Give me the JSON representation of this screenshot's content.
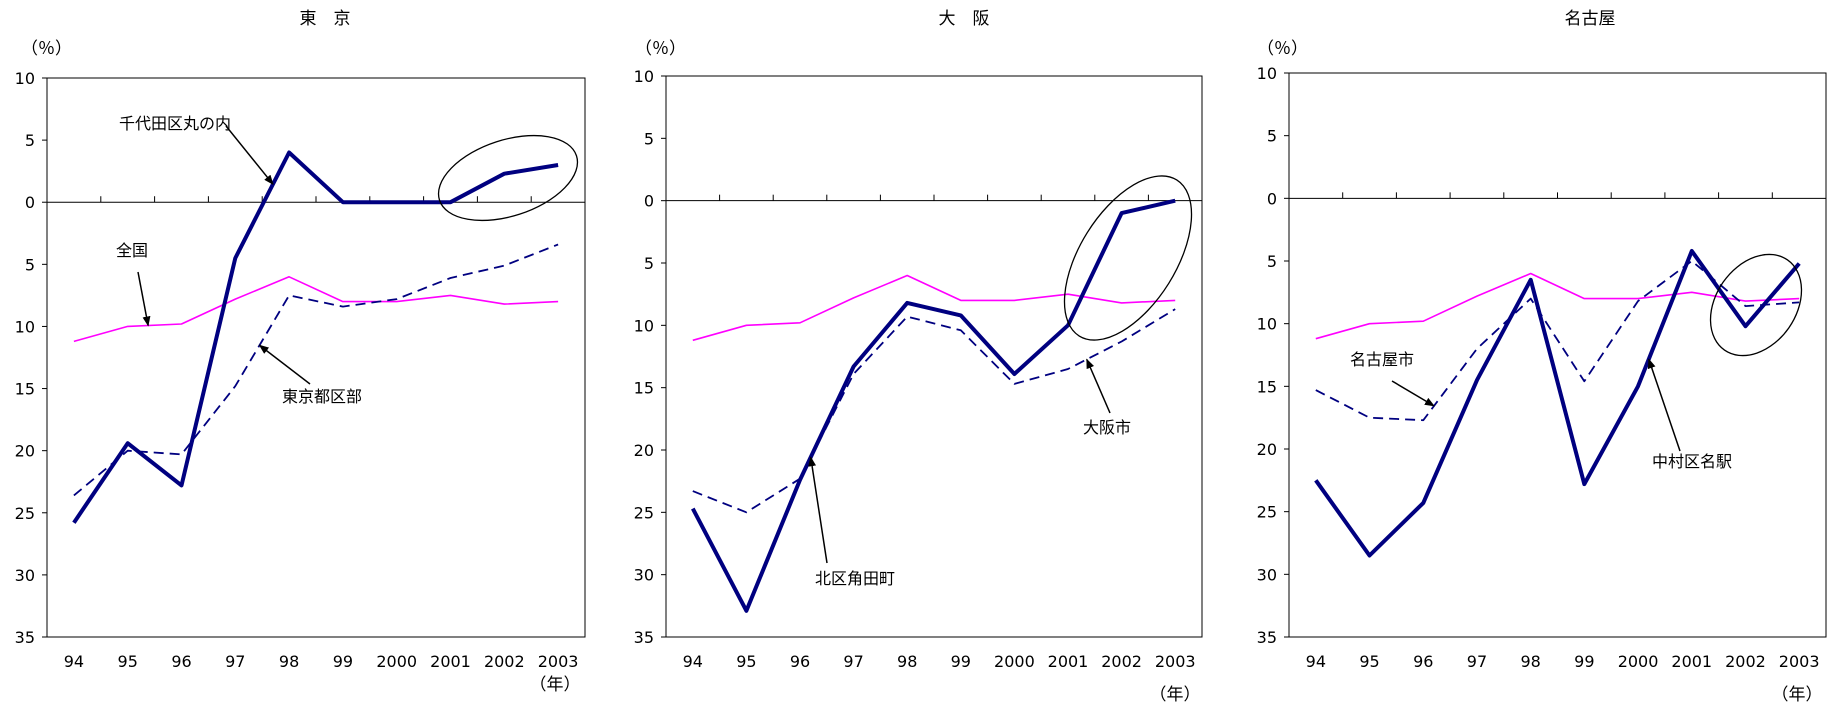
{
  "chart_data": [
    {
      "type": "line",
      "title": "東　京",
      "unit_label": "（％）",
      "x_unit_label": "（年）",
      "categories": [
        "94",
        "95",
        "96",
        "97",
        "98",
        "99",
        "2000",
        "2001",
        "2002",
        "2003"
      ],
      "ylim": [
        -35,
        10
      ],
      "yticks": [
        10,
        5,
        0,
        -5,
        -10,
        -15,
        -20,
        -25,
        -30,
        -35
      ],
      "ytick_labels": [
        "10",
        "5",
        "0",
        "5",
        "10",
        "15",
        "20",
        "25",
        "30",
        "35"
      ],
      "grid": false,
      "series": [
        {
          "name": "千代田区丸の内",
          "style": "bold",
          "color": "#000080",
          "values": [
            -25.8,
            -19.4,
            -22.8,
            -4.5,
            4.0,
            0.0,
            0.0,
            0.0,
            2.3,
            3.0
          ]
        },
        {
          "name": "東京都区部",
          "style": "dashed",
          "color": "#000080",
          "values": [
            -23.6,
            -20.0,
            -20.3,
            -14.8,
            -7.5,
            -8.4,
            -7.8,
            -6.1,
            -5.1,
            -3.4
          ]
        },
        {
          "name": "全国",
          "style": "thin",
          "color": "#ff00ff",
          "values": [
            -11.2,
            -10.0,
            -9.8,
            -7.8,
            -6.0,
            -8.0,
            -8.0,
            -7.5,
            -8.2,
            -8.0
          ]
        }
      ],
      "callouts": [
        {
          "series": 0,
          "label": "千代田区丸の内"
        },
        {
          "series": 2,
          "label": "全国"
        },
        {
          "series": 1,
          "label": "東京都区部"
        }
      ],
      "highlight_x": [
        7,
        9
      ]
    },
    {
      "type": "line",
      "title": "大　阪",
      "unit_label": "（％）",
      "x_unit_label": "（年）",
      "categories": [
        "94",
        "95",
        "96",
        "97",
        "98",
        "99",
        "2000",
        "2001",
        "2002",
        "2003"
      ],
      "ylim": [
        -35,
        10
      ],
      "yticks": [
        10,
        5,
        0,
        -5,
        -10,
        -15,
        -20,
        -25,
        -30,
        -35
      ],
      "ytick_labels": [
        "10",
        "5",
        "0",
        "5",
        "10",
        "15",
        "20",
        "25",
        "30",
        "35"
      ],
      "grid": false,
      "series": [
        {
          "name": "北区角田町",
          "style": "bold",
          "color": "#000080",
          "values": [
            -24.7,
            -32.9,
            -22.4,
            -13.3,
            -8.2,
            -9.2,
            -13.9,
            -10.0,
            -1.0,
            0.0
          ]
        },
        {
          "name": "大阪市",
          "style": "dashed",
          "color": "#000080",
          "values": [
            -23.3,
            -25.0,
            -22.3,
            -13.9,
            -9.3,
            -10.4,
            -14.7,
            -13.5,
            -11.3,
            -8.7
          ]
        },
        {
          "name": "全国",
          "style": "thin",
          "color": "#ff00ff",
          "values": [
            -11.2,
            -10.0,
            -9.8,
            -7.8,
            -6.0,
            -8.0,
            -8.0,
            -7.5,
            -8.2,
            -8.0
          ]
        }
      ],
      "callouts": [
        {
          "series": 0,
          "label": "北区角田町"
        },
        {
          "series": 1,
          "label": "大阪市"
        }
      ],
      "highlight_x": [
        7,
        9
      ]
    },
    {
      "type": "line",
      "title": "名古屋",
      "unit_label": "（％）",
      "x_unit_label": "（年）",
      "categories": [
        "94",
        "95",
        "96",
        "97",
        "98",
        "99",
        "2000",
        "2001",
        "2002",
        "2003"
      ],
      "ylim": [
        -35,
        10
      ],
      "yticks": [
        10,
        5,
        0,
        -5,
        -10,
        -15,
        -20,
        -25,
        -30,
        -35
      ],
      "ytick_labels": [
        "10",
        "5",
        "0",
        "5",
        "10",
        "15",
        "20",
        "25",
        "30",
        "35"
      ],
      "grid": false,
      "series": [
        {
          "name": "中村区名駅",
          "style": "bold",
          "color": "#000080",
          "values": [
            -22.5,
            -28.5,
            -24.3,
            -14.5,
            -6.5,
            -22.8,
            -15.0,
            -4.2,
            -10.2,
            -5.2
          ]
        },
        {
          "name": "名古屋市",
          "style": "dashed",
          "color": "#000080",
          "values": [
            -15.3,
            -17.5,
            -17.7,
            -12.0,
            -8.0,
            -14.6,
            -8.2,
            -5.0,
            -8.6,
            -8.3
          ]
        },
        {
          "name": "全国",
          "style": "thin",
          "color": "#ff00ff",
          "values": [
            -11.2,
            -10.0,
            -9.8,
            -7.8,
            -6.0,
            -8.0,
            -8.0,
            -7.5,
            -8.2,
            -8.0
          ]
        }
      ],
      "callouts": [
        {
          "series": 1,
          "label": "名古屋市"
        },
        {
          "series": 0,
          "label": "中村区名駅"
        }
      ],
      "highlight_x": [
        8,
        9
      ]
    }
  ]
}
